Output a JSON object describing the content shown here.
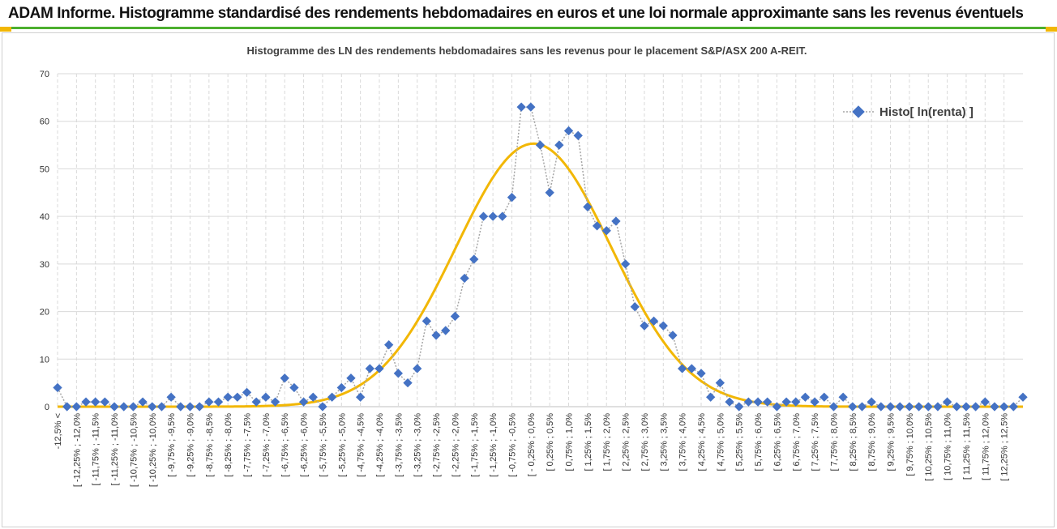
{
  "page": {
    "header_title": "ADAM Informe. Histogramme standardisé des rendements hebdomadaires en euros et une loi normale approximante sans les revenus éventuels"
  },
  "colors": {
    "accent_green": "#4caf2e",
    "accent_yellow": "#f2b705",
    "histo_marker": "#4472c4",
    "normal_curve": "#f2b705",
    "grid": "#d9d9d9"
  },
  "chart_data": {
    "type": "line",
    "title": "Histogramme des LN des rendements hebdomadaires sans les revenus pour le placement S&P/ASX 200 A-REIT.",
    "xlabel": "",
    "ylabel": "",
    "ylim": [
      0,
      70
    ],
    "yticks": [
      0,
      10,
      20,
      30,
      40,
      50,
      60,
      70
    ],
    "grid": true,
    "legend_position": "top-right",
    "categories": [
      "-12,5% <",
      "[ -12,25% ; -12,0%",
      "[ -11,75% ; -11,5%",
      "[ -11,25% ; -11,0%",
      "[ -10,75% ; -10,5%",
      "[ -10,25% ; -10,0%",
      "[ -9,75% ; -9,5%",
      "[ -9,25% ; -9,0%",
      "[ -8,75% ; -8,5%",
      "[ -8,25% ; -8,0%",
      "[ -7,75% ; -7,5%",
      "[ -7,25% ; -7,0%",
      "[ -6,75% ; -6,5%",
      "[ -6,25% ; -6,0%",
      "[ -5,75% ; -5,5%",
      "[ -5,25% ; -5,0%",
      "[ -4,75% ; -4,5%",
      "[ -4,25% ; -4,0%",
      "[ -3,75% ; -3,5%",
      "[ -3,25% ; -3,0%",
      "[ -2,75% ; -2,5%",
      "[ -2,25% ; -2,0%",
      "[ -1,75% ; -1,5%",
      "[ -1,25% ; -1,0%",
      "[ -0,75% ; -0,5%",
      "[ - 0,25% ; 0,0%",
      "[ 0,25% ; 0,5%",
      "[ 0,75% ; 1,0%",
      "[ 1,25% ; 1,5%",
      "[ 1,75% ; 2,0%",
      "[ 2,25% ; 2,5%",
      "[ 2,75% ; 3,0%",
      "[ 3,25% ; 3,5%",
      "[ 3,75% ; 4,0%",
      "[ 4,25% ; 4,5%",
      "[ 4,75% ; 5,0%",
      "[ 5,25% ; 5,5%",
      "[ 5,75% ; 6,0%",
      "[ 6,25% ; 6,5%",
      "[ 6,75% ; 7,0%",
      "[ 7,25% ; 7,5%",
      "[ 7,75% ; 8,0%",
      "[ 8,25% ; 8,5%",
      "[ 8,75% ; 9,0%",
      "[ 9,25% ; 9,5%",
      "[ 9,75% ; 10,0%",
      "[ 10,25% ; 10,5%",
      "[ 10,75% ; 11,0%",
      "[ 11,25% ; 11,5%",
      "[ 11,75% ; 12,0%",
      "[ 12,25% ; 12,5%"
    ],
    "histo": [
      4,
      0,
      0,
      1,
      1,
      1,
      0,
      0,
      0,
      1,
      0,
      0,
      2,
      0,
      0,
      0,
      1,
      1,
      2,
      2,
      3,
      1,
      2,
      1,
      6,
      4,
      1,
      2,
      0,
      2,
      4,
      6,
      2,
      8,
      8,
      13,
      7,
      5,
      8,
      18,
      15,
      16,
      19,
      27,
      31,
      40,
      40,
      40,
      44,
      63,
      63,
      55,
      45,
      55,
      58,
      57,
      42,
      38,
      37,
      39,
      30,
      21,
      17,
      18,
      17,
      15,
      8,
      8,
      7,
      2,
      5,
      1,
      0,
      1,
      1,
      1,
      0,
      1,
      1,
      2,
      1,
      2,
      0,
      2,
      0,
      0,
      1,
      0,
      0,
      0,
      0,
      0,
      0,
      0,
      1,
      0,
      0,
      0,
      1,
      0,
      0,
      0,
      2
    ],
    "normal": {
      "peak": 55.3,
      "mean_index": 50.3,
      "sd_index": 8.2
    },
    "series": [
      {
        "name": "Histo[ ln(renta) ]",
        "kind": "markers-dotted"
      },
      {
        "name": "",
        "kind": "smooth-line"
      }
    ]
  }
}
